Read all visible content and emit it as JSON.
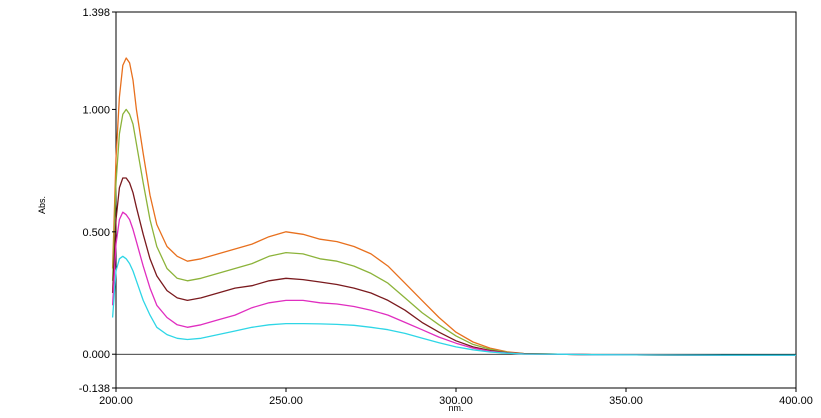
{
  "chart_data": {
    "type": "line",
    "title": "",
    "xlabel": "nm.",
    "ylabel": "Abs.",
    "xlim": [
      200,
      400
    ],
    "ylim": [
      -0.138,
      1.398
    ],
    "xticks": [
      200,
      250,
      300,
      350,
      400
    ],
    "xtick_labels": [
      "200.00",
      "250.00",
      "300.00",
      "350.00",
      "400.00"
    ],
    "yticks": [
      -0.138,
      0,
      0.5,
      1.0,
      1.398
    ],
    "ytick_labels": [
      "-0.138",
      "0.000",
      "0.500",
      "1.000",
      "1.398"
    ],
    "baseline": 0,
    "grid": false,
    "legend": "none",
    "series": [
      {
        "color": "#e8701e",
        "points": [
          [
            199,
            0.35
          ],
          [
            200,
            0.8
          ],
          [
            201,
            1.05
          ],
          [
            202,
            1.18
          ],
          [
            203,
            1.21
          ],
          [
            204,
            1.19
          ],
          [
            205,
            1.12
          ],
          [
            206,
            1.0
          ],
          [
            208,
            0.82
          ],
          [
            210,
            0.65
          ],
          [
            212,
            0.53
          ],
          [
            215,
            0.44
          ],
          [
            218,
            0.4
          ],
          [
            221,
            0.38
          ],
          [
            225,
            0.39
          ],
          [
            230,
            0.41
          ],
          [
            235,
            0.43
          ],
          [
            240,
            0.45
          ],
          [
            245,
            0.48
          ],
          [
            250,
            0.5
          ],
          [
            255,
            0.49
          ],
          [
            260,
            0.47
          ],
          [
            265,
            0.46
          ],
          [
            270,
            0.44
          ],
          [
            275,
            0.41
          ],
          [
            280,
            0.36
          ],
          [
            285,
            0.29
          ],
          [
            290,
            0.22
          ],
          [
            295,
            0.15
          ],
          [
            300,
            0.09
          ],
          [
            305,
            0.05
          ],
          [
            310,
            0.025
          ],
          [
            315,
            0.01
          ],
          [
            320,
            0.003
          ],
          [
            330,
            0
          ],
          [
            340,
            -0.002
          ],
          [
            360,
            -0.003
          ],
          [
            380,
            -0.005
          ],
          [
            400,
            -0.005
          ]
        ]
      },
      {
        "color": "#8cb33a",
        "points": [
          [
            199,
            0.3
          ],
          [
            200,
            0.7
          ],
          [
            201,
            0.9
          ],
          [
            202,
            0.98
          ],
          [
            203,
            1.0
          ],
          [
            204,
            0.98
          ],
          [
            205,
            0.94
          ],
          [
            206,
            0.86
          ],
          [
            208,
            0.7
          ],
          [
            210,
            0.55
          ],
          [
            212,
            0.44
          ],
          [
            215,
            0.35
          ],
          [
            218,
            0.31
          ],
          [
            221,
            0.3
          ],
          [
            225,
            0.31
          ],
          [
            230,
            0.33
          ],
          [
            235,
            0.35
          ],
          [
            240,
            0.37
          ],
          [
            245,
            0.4
          ],
          [
            250,
            0.415
          ],
          [
            255,
            0.41
          ],
          [
            260,
            0.39
          ],
          [
            265,
            0.38
          ],
          [
            270,
            0.36
          ],
          [
            275,
            0.33
          ],
          [
            280,
            0.29
          ],
          [
            285,
            0.23
          ],
          [
            290,
            0.17
          ],
          [
            295,
            0.12
          ],
          [
            300,
            0.075
          ],
          [
            305,
            0.04
          ],
          [
            310,
            0.02
          ],
          [
            315,
            0.008
          ],
          [
            320,
            0.002
          ],
          [
            330,
            0
          ],
          [
            340,
            -0.002
          ],
          [
            360,
            -0.003
          ],
          [
            380,
            -0.004
          ],
          [
            400,
            -0.004
          ]
        ]
      },
      {
        "color": "#7a1a1e",
        "points": [
          [
            199,
            0.25
          ],
          [
            200,
            0.55
          ],
          [
            201,
            0.68
          ],
          [
            202,
            0.72
          ],
          [
            203,
            0.72
          ],
          [
            204,
            0.7
          ],
          [
            205,
            0.66
          ],
          [
            206,
            0.6
          ],
          [
            208,
            0.49
          ],
          [
            210,
            0.39
          ],
          [
            212,
            0.32
          ],
          [
            215,
            0.26
          ],
          [
            218,
            0.23
          ],
          [
            221,
            0.22
          ],
          [
            225,
            0.23
          ],
          [
            230,
            0.25
          ],
          [
            235,
            0.27
          ],
          [
            240,
            0.28
          ],
          [
            245,
            0.3
          ],
          [
            250,
            0.31
          ],
          [
            255,
            0.305
          ],
          [
            260,
            0.295
          ],
          [
            265,
            0.285
          ],
          [
            270,
            0.27
          ],
          [
            275,
            0.25
          ],
          [
            280,
            0.22
          ],
          [
            285,
            0.18
          ],
          [
            290,
            0.13
          ],
          [
            295,
            0.09
          ],
          [
            300,
            0.055
          ],
          [
            305,
            0.03
          ],
          [
            310,
            0.015
          ],
          [
            315,
            0.006
          ],
          [
            320,
            0.002
          ],
          [
            330,
            0
          ],
          [
            340,
            -0.002
          ],
          [
            360,
            -0.003
          ],
          [
            380,
            -0.004
          ],
          [
            400,
            -0.004
          ]
        ]
      },
      {
        "color": "#e02ec0",
        "points": [
          [
            199,
            0.2
          ],
          [
            200,
            0.45
          ],
          [
            201,
            0.55
          ],
          [
            202,
            0.58
          ],
          [
            203,
            0.57
          ],
          [
            204,
            0.55
          ],
          [
            205,
            0.51
          ],
          [
            206,
            0.46
          ],
          [
            208,
            0.36
          ],
          [
            210,
            0.27
          ],
          [
            212,
            0.2
          ],
          [
            215,
            0.15
          ],
          [
            218,
            0.12
          ],
          [
            221,
            0.11
          ],
          [
            225,
            0.12
          ],
          [
            230,
            0.14
          ],
          [
            235,
            0.16
          ],
          [
            240,
            0.19
          ],
          [
            245,
            0.21
          ],
          [
            250,
            0.22
          ],
          [
            255,
            0.22
          ],
          [
            260,
            0.21
          ],
          [
            265,
            0.205
          ],
          [
            270,
            0.195
          ],
          [
            275,
            0.18
          ],
          [
            280,
            0.16
          ],
          [
            285,
            0.13
          ],
          [
            290,
            0.1
          ],
          [
            295,
            0.07
          ],
          [
            300,
            0.045
          ],
          [
            305,
            0.025
          ],
          [
            310,
            0.012
          ],
          [
            315,
            0.005
          ],
          [
            320,
            0.001
          ],
          [
            330,
            0
          ],
          [
            340,
            -0.002
          ],
          [
            360,
            -0.003
          ],
          [
            380,
            -0.004
          ],
          [
            400,
            -0.004
          ]
        ]
      },
      {
        "color": "#2ed6e6",
        "points": [
          [
            199,
            0.15
          ],
          [
            200,
            0.34
          ],
          [
            201,
            0.39
          ],
          [
            202,
            0.4
          ],
          [
            203,
            0.39
          ],
          [
            204,
            0.37
          ],
          [
            205,
            0.34
          ],
          [
            206,
            0.3
          ],
          [
            208,
            0.22
          ],
          [
            210,
            0.16
          ],
          [
            212,
            0.11
          ],
          [
            215,
            0.08
          ],
          [
            218,
            0.065
          ],
          [
            221,
            0.06
          ],
          [
            225,
            0.065
          ],
          [
            230,
            0.08
          ],
          [
            235,
            0.095
          ],
          [
            240,
            0.11
          ],
          [
            245,
            0.12
          ],
          [
            250,
            0.125
          ],
          [
            255,
            0.125
          ],
          [
            260,
            0.124
          ],
          [
            265,
            0.122
          ],
          [
            270,
            0.118
          ],
          [
            275,
            0.11
          ],
          [
            280,
            0.1
          ],
          [
            285,
            0.085
          ],
          [
            290,
            0.066
          ],
          [
            295,
            0.047
          ],
          [
            300,
            0.03
          ],
          [
            305,
            0.018
          ],
          [
            310,
            0.009
          ],
          [
            315,
            0.004
          ],
          [
            320,
            0.001
          ],
          [
            330,
            0
          ],
          [
            340,
            -0.002
          ],
          [
            360,
            -0.003
          ],
          [
            380,
            -0.004
          ],
          [
            400,
            -0.004
          ]
        ]
      }
    ]
  }
}
